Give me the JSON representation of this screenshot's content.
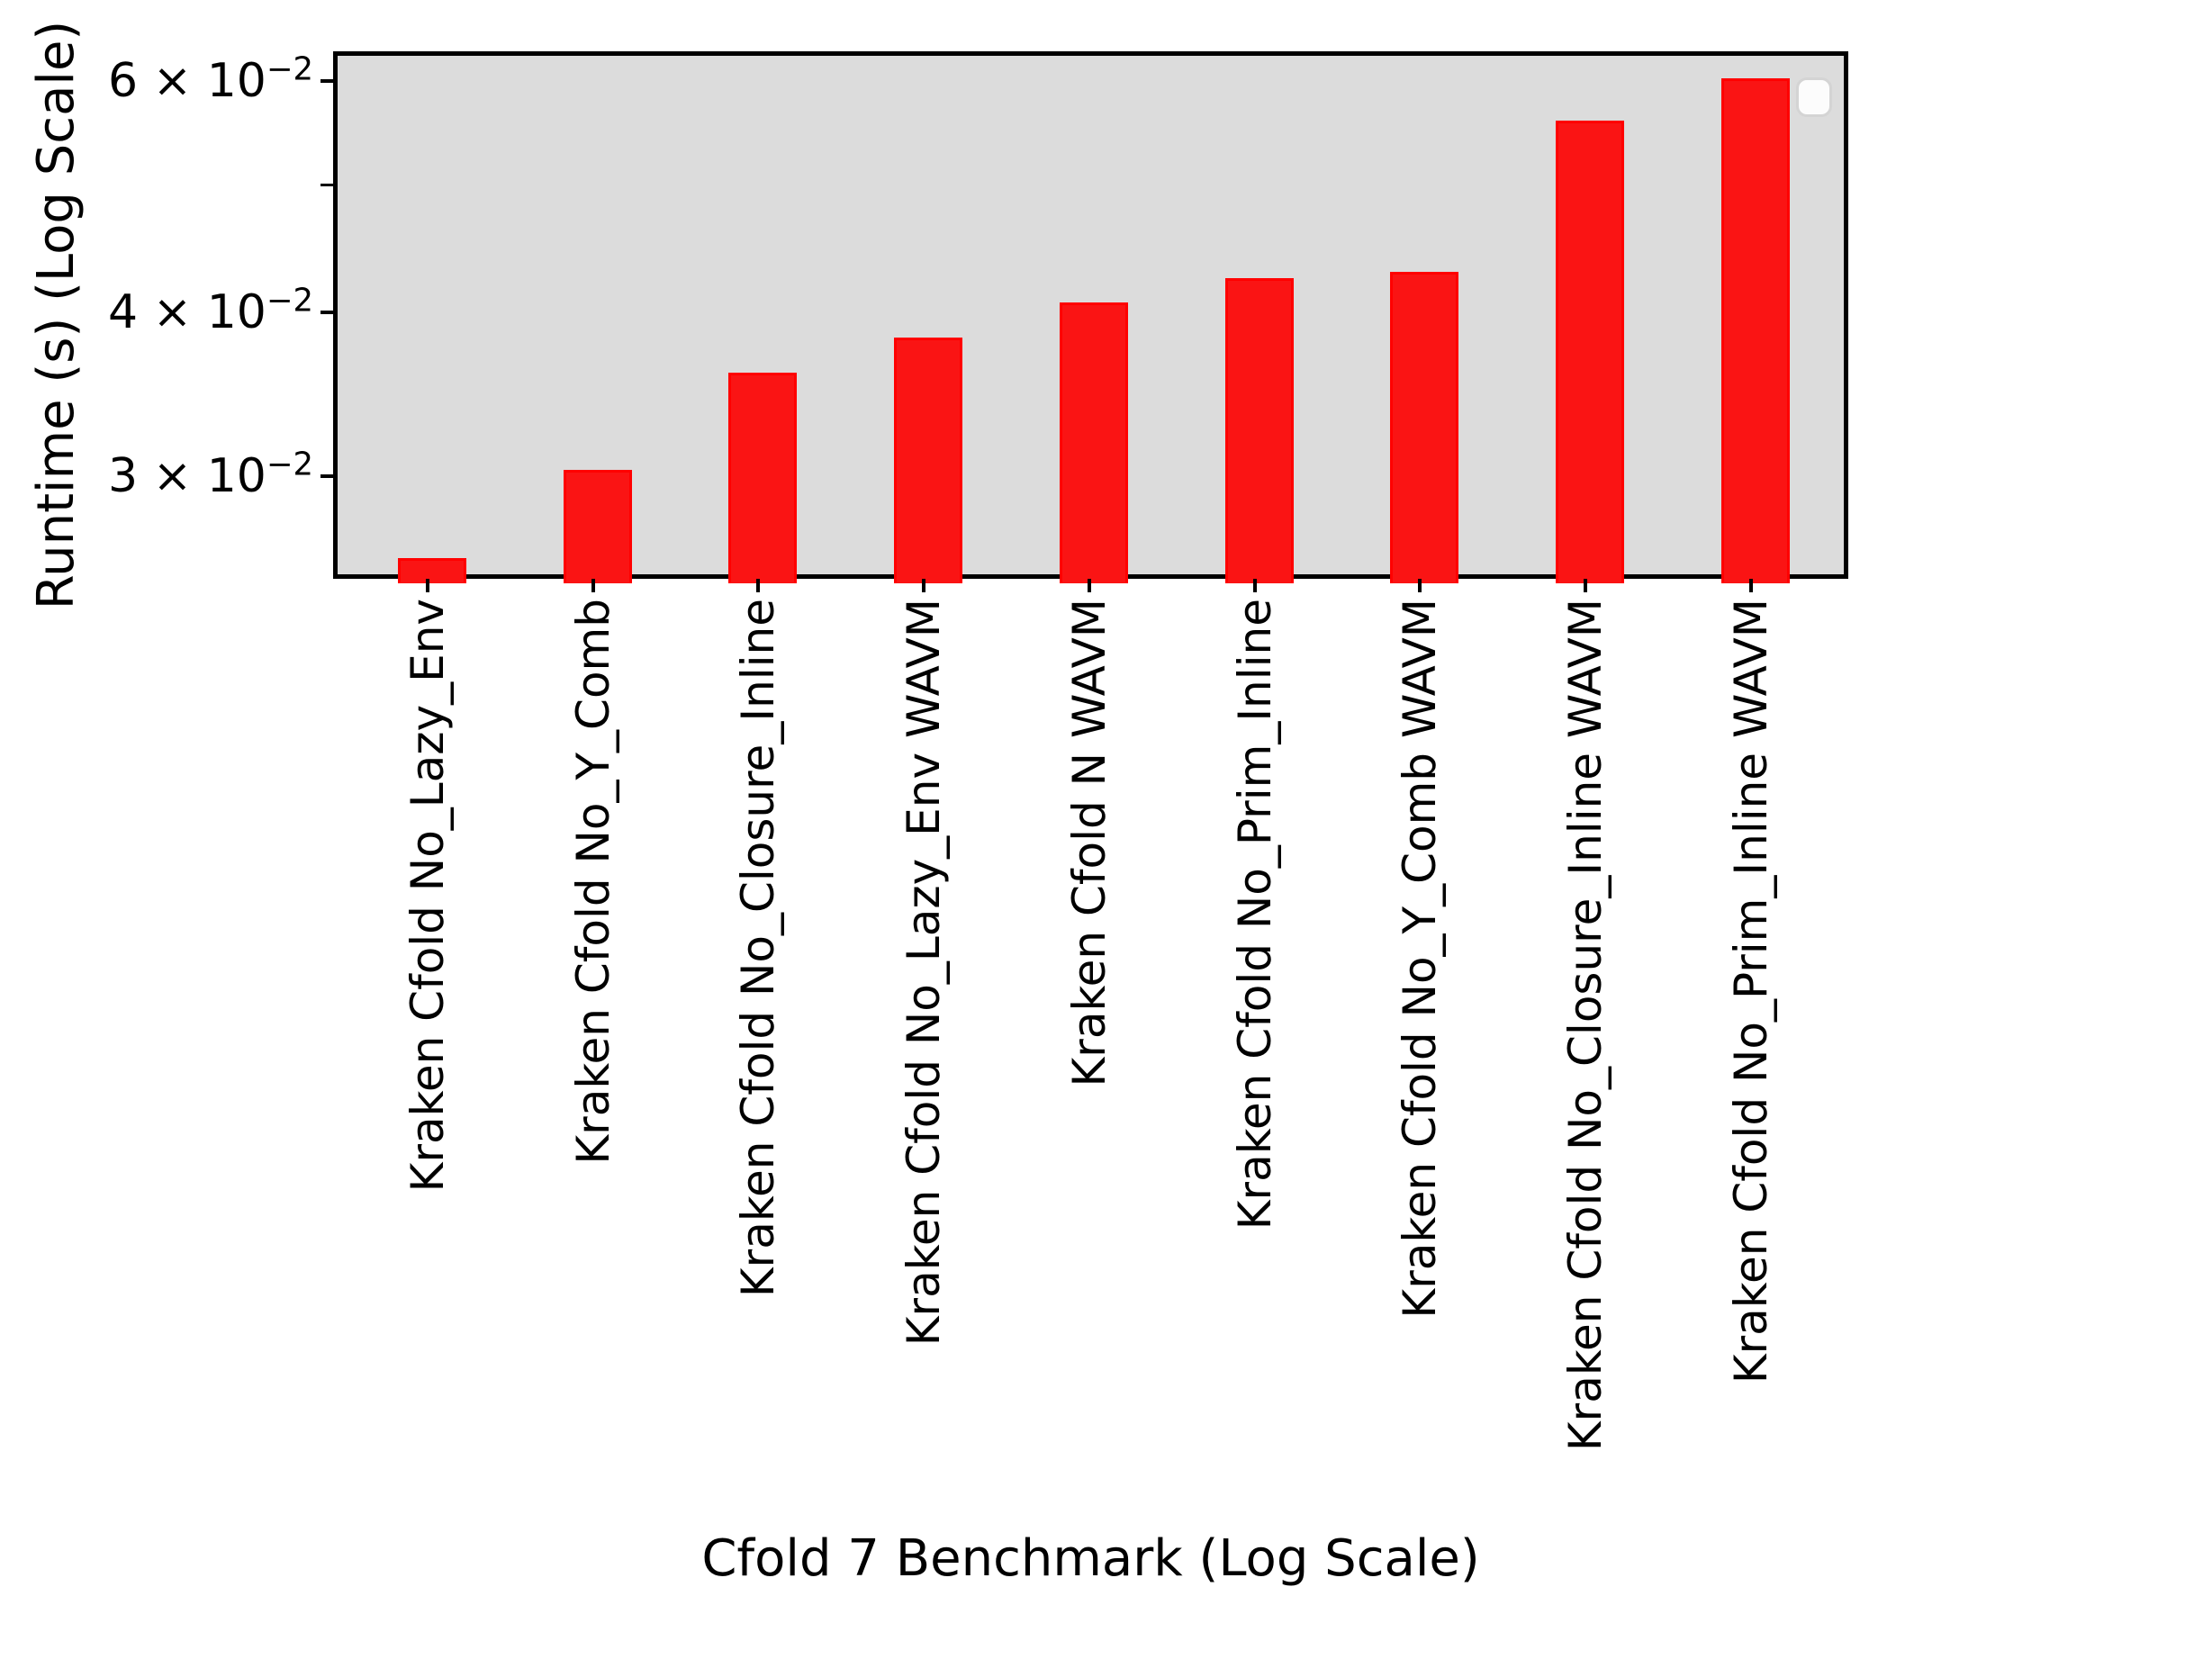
{
  "chart_data": {
    "type": "bar",
    "title": "",
    "xlabel": "Cfold 7 Benchmark (Log Scale)",
    "ylabel": "Runtime (s) (Log Scale)",
    "yscale": "log",
    "ylim": [
      0.02508,
      0.0632
    ],
    "grid": false,
    "legend_position": "upper right",
    "categories": [
      "Kraken Cfold No_Lazy_Env",
      "Kraken Cfold No_Y_Comb",
      "Kraken Cfold No_Closure_Inline",
      "Kraken Cfold No_Lazy_Env WAVM",
      "Kraken Cfold N WAVM",
      "Kraken Cfold No_Prim_Inline",
      "Kraken Cfold No_Y_Comb WAVM",
      "Kraken Cfold No_Closure_Inline WAVM",
      "Kraken Cfold No_Prim_Inline WAVM"
    ],
    "values": [
      0.0262,
      0.0306,
      0.0363,
      0.0386,
      0.041,
      0.0428,
      0.0433,
      0.0564,
      0.0608
    ],
    "yticks": [
      {
        "value": 0.06,
        "labeled": true,
        "mantissa": "6",
        "times": "×",
        "base": "10",
        "exponent": "−2"
      },
      {
        "value": 0.05,
        "labeled": false,
        "mantissa": "5",
        "times": "×",
        "base": "10",
        "exponent": "−2"
      },
      {
        "value": 0.04,
        "labeled": true,
        "mantissa": "4",
        "times": "×",
        "base": "10",
        "exponent": "−2"
      },
      {
        "value": 0.03,
        "labeled": true,
        "mantissa": "3",
        "times": "×",
        "base": "10",
        "exponent": "−2"
      }
    ],
    "legend": {
      "visible": true,
      "entries": []
    }
  },
  "colors": {
    "bar_fill": "#fa1414",
    "bar_edge": "#ff0000",
    "plot_background": "#dcdcdc",
    "frame": "#000000",
    "page_background": "#ffffff",
    "legend_background": "#fcfcfc",
    "legend_border": "#d4d4d4"
  }
}
